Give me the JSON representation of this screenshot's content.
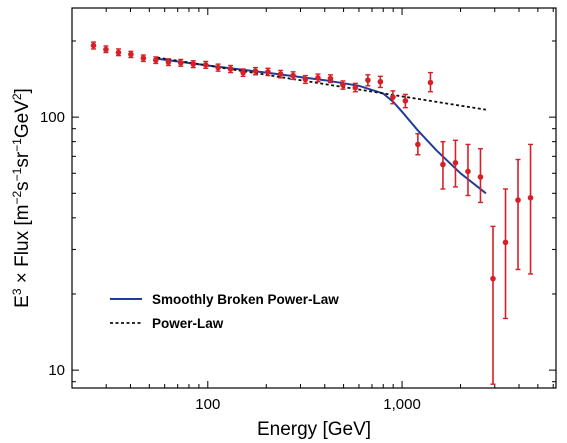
{
  "chart_data": {
    "type": "scatter",
    "title": "",
    "xlabel": "Energy [GeV]",
    "ylabel_parts": {
      "pre": "E",
      "sup1": "3",
      "mid1": " × Flux [m",
      "sup2": "−2",
      "mid2": "s",
      "sup3": "−1",
      "mid3": "sr",
      "sup4": "−1",
      "mid4": "GeV",
      "sup5": "2",
      "post": "]"
    },
    "x_scale": "log",
    "y_scale": "log",
    "xlim": [
      20,
      6200
    ],
    "ylim": [
      8.5,
      270
    ],
    "x_ticks": [
      {
        "value": 100,
        "label": "100"
      },
      {
        "value": 1000,
        "label": "1,000"
      }
    ],
    "y_ticks": [
      {
        "value": 10,
        "label": "10"
      },
      {
        "value": 100,
        "label": "100"
      }
    ],
    "grid": false,
    "legend_position": "bottom-left",
    "series": [
      {
        "name": "",
        "kind": "points",
        "color": "#d62027",
        "points": [
          {
            "x": 25.8,
            "y": 192,
            "lo": 186,
            "hi": 198
          },
          {
            "x": 29.9,
            "y": 185,
            "lo": 180,
            "hi": 191
          },
          {
            "x": 34.7,
            "y": 180,
            "lo": 175,
            "hi": 186
          },
          {
            "x": 40.2,
            "y": 177,
            "lo": 172,
            "hi": 182
          },
          {
            "x": 46.6,
            "y": 171,
            "lo": 166,
            "hi": 176
          },
          {
            "x": 54.0,
            "y": 168,
            "lo": 163,
            "hi": 173
          },
          {
            "x": 62.7,
            "y": 165,
            "lo": 160,
            "hi": 170
          },
          {
            "x": 72.6,
            "y": 164,
            "lo": 159,
            "hi": 169
          },
          {
            "x": 84.2,
            "y": 162,
            "lo": 157,
            "hi": 167
          },
          {
            "x": 97.6,
            "y": 161,
            "lo": 156,
            "hi": 166
          },
          {
            "x": 113,
            "y": 157,
            "lo": 152,
            "hi": 162
          },
          {
            "x": 131,
            "y": 155,
            "lo": 150,
            "hi": 160
          },
          {
            "x": 152,
            "y": 150,
            "lo": 145,
            "hi": 155
          },
          {
            "x": 176,
            "y": 152,
            "lo": 147,
            "hi": 157
          },
          {
            "x": 204,
            "y": 151,
            "lo": 146,
            "hi": 156
          },
          {
            "x": 237,
            "y": 148,
            "lo": 143,
            "hi": 153
          },
          {
            "x": 275,
            "y": 146,
            "lo": 141,
            "hi": 151
          },
          {
            "x": 318,
            "y": 141,
            "lo": 136,
            "hi": 146
          },
          {
            "x": 369,
            "y": 143,
            "lo": 138,
            "hi": 148
          },
          {
            "x": 428,
            "y": 142,
            "lo": 137,
            "hi": 147
          },
          {
            "x": 496,
            "y": 134,
            "lo": 129,
            "hi": 139
          },
          {
            "x": 575,
            "y": 131,
            "lo": 126,
            "hi": 136
          },
          {
            "x": 667,
            "y": 140,
            "lo": 133,
            "hi": 147
          },
          {
            "x": 773,
            "y": 138,
            "lo": 131,
            "hi": 145
          },
          {
            "x": 897,
            "y": 120,
            "lo": 113,
            "hi": 127
          },
          {
            "x": 1040,
            "y": 116,
            "lo": 109,
            "hi": 123
          },
          {
            "x": 1206,
            "y": 78,
            "lo": 71,
            "hi": 86
          },
          {
            "x": 1400,
            "y": 137,
            "lo": 126,
            "hi": 150
          },
          {
            "x": 1623,
            "y": 65,
            "lo": 52,
            "hi": 80
          },
          {
            "x": 1883,
            "y": 66,
            "lo": 53,
            "hi": 81
          },
          {
            "x": 2184,
            "y": 61,
            "lo": 49,
            "hi": 78
          },
          {
            "x": 2533,
            "y": 58,
            "lo": 46,
            "hi": 75
          },
          {
            "x": 2938,
            "y": 23,
            "lo": 8.8,
            "hi": 37
          },
          {
            "x": 3408,
            "y": 32,
            "lo": 16,
            "hi": 52
          },
          {
            "x": 3953,
            "y": 47,
            "lo": 25,
            "hi": 68
          },
          {
            "x": 4585,
            "y": 48,
            "lo": 24,
            "hi": 78
          }
        ]
      },
      {
        "name": "Smoothly Broken Power-Law",
        "kind": "line",
        "color": "#1f3d99",
        "dash": false,
        "x": [
          55,
          100,
          200,
          400,
          600,
          800,
          900,
          1000,
          1200,
          1500,
          2000,
          2700
        ],
        "y": [
          170,
          160,
          150,
          140,
          133,
          124,
          115,
          105,
          89,
          74,
          60,
          50
        ]
      },
      {
        "name": "Power-Law",
        "kind": "line",
        "color": "#111111",
        "dash": true,
        "x": [
          55,
          2700
        ],
        "y": [
          172,
          107
        ]
      }
    ]
  }
}
